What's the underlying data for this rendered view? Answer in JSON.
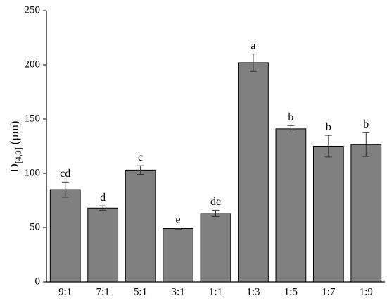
{
  "chart_data": {
    "type": "bar",
    "y_label": {
      "main": "D",
      "sub": "[4,3]",
      "unit": "(μm)"
    },
    "categories": [
      "9:1",
      "7:1",
      "5:1",
      "3:1",
      "1:1",
      "1:3",
      "1:5",
      "1:7",
      "1:9"
    ],
    "values": [
      85,
      68,
      103,
      49,
      63,
      202,
      141,
      125,
      126.5
    ],
    "errors": [
      7,
      2,
      4,
      0.5,
      3,
      8,
      3,
      10,
      11
    ],
    "letters": [
      "cd",
      "d",
      "c",
      "e",
      "de",
      "a",
      "b",
      "b",
      "b"
    ],
    "color": "#808080",
    "ylim": [
      0,
      250
    ],
    "yticks": [
      0,
      50,
      100,
      150,
      200,
      250
    ],
    "grid": false
  }
}
